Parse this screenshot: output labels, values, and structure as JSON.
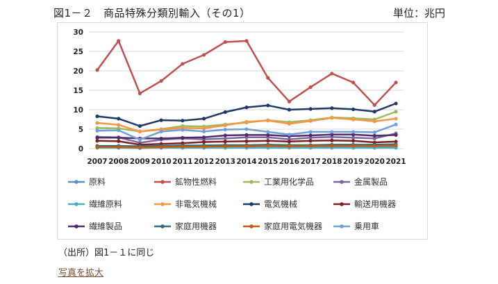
{
  "header": {
    "title": "図1－２　商品特殊分類別輸入（その1）",
    "unit": "単位：兆円"
  },
  "footer": {
    "source": "（出所）図1－１に同じ",
    "zoom_link": "写真を拡大"
  },
  "chart_data": {
    "type": "line",
    "title": "図1－２　商品特殊分類別輸入（その1）",
    "ylabel": "単位：兆円",
    "xlabel": "",
    "ylim": [
      0,
      30
    ],
    "yticks": [
      0,
      5,
      10,
      15,
      20,
      25,
      30
    ],
    "grid": true,
    "legend": "bottom",
    "x": [
      "2007",
      "2008",
      "2009",
      "2010",
      "2011",
      "2012",
      "2013",
      "2014",
      "2015",
      "2016",
      "2017",
      "2018",
      "2019",
      "2020",
      "2021"
    ],
    "series": [
      {
        "name": "原料",
        "color": "#5b8dc9",
        "values": [
          0.5,
          0.5,
          0.3,
          0.4,
          0.4,
          0.4,
          0.4,
          0.4,
          0.4,
          0.3,
          0.4,
          0.4,
          0.4,
          0.4,
          0.5
        ]
      },
      {
        "name": "鉱物性燃料",
        "color": "#c0504d",
        "values": [
          20.2,
          27.7,
          14.2,
          17.4,
          21.8,
          24.1,
          27.4,
          27.7,
          18.2,
          12.1,
          15.8,
          19.3,
          17.0,
          11.2,
          17.0
        ]
      },
      {
        "name": "工業用化学品",
        "color": "#9bbb59",
        "values": [
          5.3,
          5.2,
          4.4,
          5.0,
          5.8,
          5.7,
          6.2,
          6.7,
          7.3,
          6.8,
          7.3,
          8.0,
          7.8,
          7.5,
          9.5
        ]
      },
      {
        "name": "金属製品",
        "color": "#8064a2",
        "values": [
          3.0,
          2.9,
          1.5,
          2.3,
          2.6,
          2.4,
          2.6,
          2.9,
          2.9,
          2.4,
          2.8,
          3.0,
          2.8,
          2.6,
          3.9
        ]
      },
      {
        "name": "繊維原料",
        "color": "#4bacc6",
        "values": [
          0.2,
          0.2,
          0.1,
          0.2,
          0.2,
          0.2,
          0.2,
          0.2,
          0.2,
          0.2,
          0.2,
          0.2,
          0.2,
          0.2,
          0.2
        ]
      },
      {
        "name": "非電気機械",
        "color": "#f79646",
        "values": [
          6.6,
          6.1,
          4.4,
          4.9,
          5.3,
          5.2,
          6.0,
          6.9,
          7.2,
          6.4,
          7.1,
          7.9,
          7.5,
          7.0,
          7.7
        ]
      },
      {
        "name": "電気機械",
        "color": "#1f3864",
        "values": [
          8.3,
          7.7,
          5.8,
          7.3,
          7.2,
          7.7,
          9.4,
          10.6,
          11.1,
          10.0,
          10.2,
          10.4,
          10.1,
          9.5,
          11.6
        ]
      },
      {
        "name": "輸送用機器",
        "color": "#7b1f1f",
        "values": [
          2.0,
          1.9,
          1.0,
          1.2,
          1.4,
          1.7,
          1.8,
          1.9,
          2.0,
          1.8,
          2.0,
          2.1,
          2.0,
          1.6,
          1.8
        ]
      },
      {
        "name": "繊維製品",
        "color": "#4e2a6e",
        "values": [
          2.8,
          2.8,
          2.6,
          2.6,
          2.8,
          2.9,
          3.4,
          3.5,
          3.5,
          3.2,
          3.4,
          3.6,
          3.6,
          3.3,
          3.5
        ]
      },
      {
        "name": "家庭用機器",
        "color": "#2e6e78",
        "values": [
          0.7,
          0.7,
          0.6,
          0.7,
          0.8,
          0.8,
          0.9,
          0.9,
          1.0,
          0.9,
          0.9,
          1.0,
          1.0,
          1.0,
          1.1
        ]
      },
      {
        "name": "家庭用電気機器",
        "color": "#c55a11",
        "values": [
          0.4,
          0.4,
          0.3,
          0.4,
          0.5,
          0.5,
          0.6,
          0.6,
          0.7,
          0.6,
          0.7,
          0.7,
          0.7,
          0.7,
          0.8
        ]
      },
      {
        "name": "乗用車",
        "color": "#6f9fd8",
        "values": [
          4.6,
          4.7,
          2.3,
          4.4,
          4.8,
          4.4,
          4.9,
          5.0,
          4.3,
          3.6,
          4.3,
          4.3,
          4.3,
          4.2,
          6.2
        ]
      }
    ]
  }
}
